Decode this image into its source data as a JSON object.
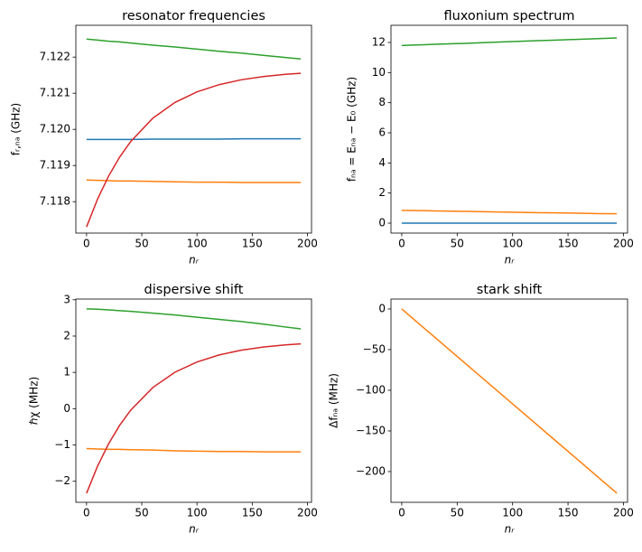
{
  "chart_data": [
    {
      "type": "line",
      "title": "resonator frequencies",
      "xlabel": "nᵣ",
      "ylabel": "fᵣ,ₙₐ (GHz)",
      "x": [
        0,
        10,
        20,
        30,
        40,
        60,
        80,
        100,
        120,
        140,
        160,
        180,
        194
      ],
      "xlim": [
        -9.7,
        203.7
      ],
      "xticks": [
        0,
        50,
        100,
        150,
        200
      ],
      "ylim": [
        7.11713,
        7.12288
      ],
      "yticks": [
        7.118,
        7.119,
        {
          "value": 7.12,
          "label": "7.120"
        },
        7.121,
        7.122
      ],
      "series": [
        {
          "color": "#1f77b4",
          "values": [
            7.11972,
            7.11972,
            7.11972,
            7.11972,
            7.11972,
            7.11973,
            7.11973,
            7.11973,
            7.11973,
            7.11974,
            7.11974,
            7.11974,
            7.11974
          ]
        },
        {
          "color": "#ff7f0e",
          "values": [
            7.1186,
            7.11859,
            7.11858,
            7.11857,
            7.11857,
            7.11856,
            7.11855,
            7.11854,
            7.11854,
            7.11853,
            7.11853,
            7.11853,
            7.11853
          ]
        },
        {
          "color": "#2ca02c",
          "values": [
            7.1225,
            7.12247,
            7.12244,
            7.12242,
            7.12239,
            7.12233,
            7.12228,
            7.12222,
            7.12216,
            7.12211,
            7.12205,
            7.12199,
            7.12195
          ]
        },
        {
          "color": "#d62728",
          "values": [
            7.1173,
            7.118074,
            7.11871,
            7.119236,
            7.119666,
            7.12031,
            7.120745,
            7.121037,
            7.121237,
            7.121372,
            7.121461,
            7.121523,
            7.121553
          ]
        }
      ]
    },
    {
      "type": "line",
      "title": "fluxonium spectrum",
      "xlabel": "nᵣ",
      "ylabel": "fₙₐ = Eₙₐ − E₀ (GHz)",
      "x": [
        0,
        10,
        20,
        30,
        40,
        60,
        80,
        100,
        120,
        140,
        160,
        180,
        194
      ],
      "xlim": [
        -9.7,
        203.7
      ],
      "xticks": [
        0,
        50,
        100,
        150,
        200
      ],
      "ylim": [
        -0.66,
        13.14
      ],
      "yticks": [
        0,
        2,
        4,
        6,
        8,
        10,
        12
      ],
      "series": [
        {
          "color": "#1f77b4",
          "values": [
            0,
            0,
            0,
            0,
            0,
            0,
            0,
            0,
            0,
            0,
            0,
            0,
            0
          ]
        },
        {
          "color": "#ff7f0e",
          "values": [
            0.85,
            0.84,
            0.83,
            0.81,
            0.8,
            0.78,
            0.75,
            0.73,
            0.7,
            0.68,
            0.66,
            0.63,
            0.62
          ]
        },
        {
          "color": "#2ca02c",
          "values": [
            11.8,
            11.83,
            11.85,
            11.88,
            11.9,
            11.95,
            12.01,
            12.06,
            12.11,
            12.16,
            12.21,
            12.26,
            12.3
          ]
        }
      ]
    },
    {
      "type": "line",
      "title": "dispersive shift",
      "xlabel": "nᵣ",
      "ylabel": "ℏχ (MHz)",
      "x": [
        0,
        10,
        20,
        30,
        40,
        60,
        80,
        100,
        120,
        140,
        160,
        180,
        194
      ],
      "xlim": [
        -9.7,
        203.7
      ],
      "xticks": [
        0,
        50,
        100,
        150,
        200
      ],
      "ylim": [
        -2.58,
        3.02
      ],
      "yticks": [
        {
          "value": -2,
          "label": "−2"
        },
        {
          "value": -1,
          "label": "−1"
        },
        0,
        1,
        2,
        3
      ],
      "series": [
        {
          "color": "#ff7f0e",
          "values": [
            -1.1,
            -1.11,
            -1.12,
            -1.12,
            -1.13,
            -1.14,
            -1.16,
            -1.17,
            -1.18,
            -1.18,
            -1.19,
            -1.19,
            -1.19
          ]
        },
        {
          "color": "#2ca02c",
          "values": [
            2.75,
            2.74,
            2.72,
            2.7,
            2.68,
            2.63,
            2.58,
            2.52,
            2.46,
            2.4,
            2.33,
            2.25,
            2.2
          ]
        },
        {
          "color": "#d62728",
          "values": [
            -2.33,
            -1.581,
            -0.966,
            -0.457,
            -0.04,
            0.583,
            1.004,
            1.286,
            1.48,
            1.611,
            1.697,
            1.757,
            1.786
          ]
        }
      ]
    },
    {
      "type": "line",
      "title": "stark shift",
      "xlabel": "nᵣ",
      "ylabel": "Δfₙₐ (MHz)",
      "x": [
        0,
        10,
        20,
        30,
        40,
        60,
        80,
        100,
        120,
        140,
        160,
        180,
        194
      ],
      "xlim": [
        -9.7,
        203.7
      ],
      "xticks": [
        0,
        50,
        100,
        150,
        200
      ],
      "ylim": [
        -237.8,
        12.2
      ],
      "yticks": [
        {
          "value": -200,
          "label": "−200"
        },
        {
          "value": -150,
          "label": "−150"
        },
        {
          "value": -100,
          "label": "−100"
        },
        {
          "value": -50,
          "label": "−50"
        },
        0
      ],
      "series": [
        {
          "color": "#ff7f0e",
          "values": [
            0,
            -11.7,
            -23.4,
            -35.0,
            -46.7,
            -70.1,
            -93.4,
            -116.8,
            -140.1,
            -163.5,
            -186.8,
            -210.2,
            -226.5
          ]
        }
      ]
    }
  ]
}
